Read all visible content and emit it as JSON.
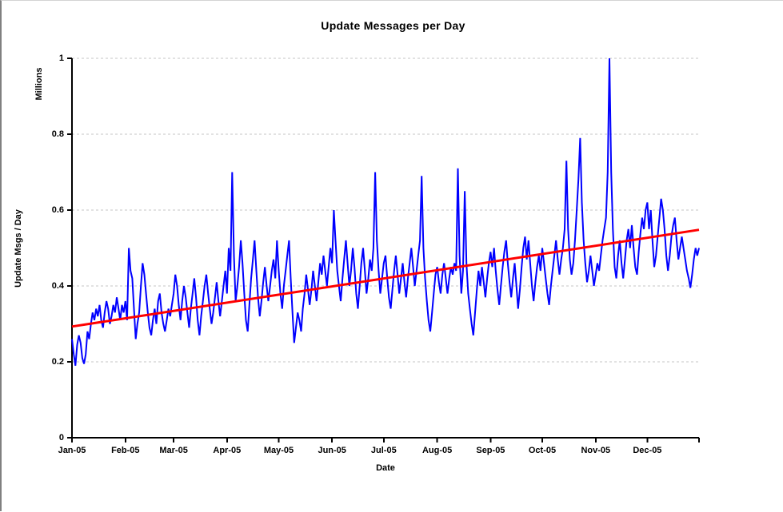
{
  "chart_data": {
    "type": "line",
    "title": "Update Messages per Day",
    "xlabel": "Date",
    "ylabel": "Update Msgs / Day",
    "y_axis_units": "Millions",
    "x_tick_labels": [
      "Jan-05",
      "Feb-05",
      "Mar-05",
      "Apr-05",
      "May-05",
      "Jun-05",
      "Jul-05",
      "Aug-05",
      "Sep-05",
      "Oct-05",
      "Nov-05",
      "Dec-05"
    ],
    "y_ticks": [
      0,
      0.2,
      0.4,
      0.6,
      0.8,
      1
    ],
    "y_tick_labels": [
      "0",
      "0.2",
      "0.4",
      "0.6",
      "0.8",
      "1"
    ],
    "ylim": [
      0,
      1
    ],
    "x_domain_days": 365,
    "month_start_days": [
      0,
      31,
      59,
      90,
      120,
      151,
      181,
      212,
      243,
      273,
      304,
      334
    ],
    "grid": {
      "horizontal": true,
      "style": "dashed",
      "color": "#c6c6c6"
    },
    "legend": "none",
    "colors": {
      "daily": "#0000ff",
      "trend": "#ff0000",
      "axis": "#000000",
      "background": "#ffffff"
    },
    "series": [
      {
        "name": "Update Msgs / Day (daily)",
        "color": "#0000ff",
        "width": 2,
        "values": [
          0.26,
          0.22,
          0.19,
          0.245,
          0.27,
          0.25,
          0.21,
          0.195,
          0.22,
          0.28,
          0.26,
          0.3,
          0.33,
          0.31,
          0.34,
          0.32,
          0.35,
          0.31,
          0.29,
          0.33,
          0.36,
          0.34,
          0.3,
          0.32,
          0.35,
          0.33,
          0.37,
          0.34,
          0.31,
          0.35,
          0.33,
          0.36,
          0.31,
          0.5,
          0.44,
          0.42,
          0.34,
          0.26,
          0.3,
          0.33,
          0.4,
          0.46,
          0.43,
          0.38,
          0.33,
          0.29,
          0.27,
          0.31,
          0.34,
          0.3,
          0.36,
          0.38,
          0.33,
          0.3,
          0.28,
          0.31,
          0.34,
          0.32,
          0.35,
          0.38,
          0.43,
          0.4,
          0.35,
          0.31,
          0.36,
          0.4,
          0.37,
          0.33,
          0.29,
          0.34,
          0.38,
          0.42,
          0.37,
          0.31,
          0.27,
          0.32,
          0.36,
          0.4,
          0.43,
          0.38,
          0.34,
          0.3,
          0.33,
          0.37,
          0.41,
          0.36,
          0.32,
          0.36,
          0.4,
          0.44,
          0.38,
          0.5,
          0.44,
          0.7,
          0.48,
          0.36,
          0.4,
          0.45,
          0.52,
          0.46,
          0.38,
          0.31,
          0.28,
          0.35,
          0.42,
          0.47,
          0.52,
          0.44,
          0.37,
          0.32,
          0.36,
          0.41,
          0.45,
          0.4,
          0.36,
          0.4,
          0.44,
          0.47,
          0.42,
          0.52,
          0.44,
          0.38,
          0.34,
          0.4,
          0.44,
          0.48,
          0.52,
          0.42,
          0.33,
          0.25,
          0.29,
          0.33,
          0.31,
          0.28,
          0.34,
          0.38,
          0.43,
          0.39,
          0.35,
          0.39,
          0.44,
          0.4,
          0.36,
          0.41,
          0.46,
          0.43,
          0.48,
          0.44,
          0.4,
          0.45,
          0.5,
          0.46,
          0.6,
          0.52,
          0.44,
          0.4,
          0.36,
          0.42,
          0.47,
          0.52,
          0.46,
          0.4,
          0.44,
          0.5,
          0.45,
          0.38,
          0.34,
          0.4,
          0.46,
          0.5,
          0.44,
          0.38,
          0.42,
          0.47,
          0.44,
          0.5,
          0.7,
          0.52,
          0.44,
          0.38,
          0.42,
          0.46,
          0.48,
          0.42,
          0.37,
          0.34,
          0.39,
          0.44,
          0.48,
          0.43,
          0.38,
          0.42,
          0.46,
          0.41,
          0.37,
          0.42,
          0.46,
          0.5,
          0.45,
          0.4,
          0.44,
          0.48,
          0.52,
          0.69,
          0.5,
          0.42,
          0.36,
          0.31,
          0.28,
          0.33,
          0.38,
          0.43,
          0.45,
          0.41,
          0.38,
          0.43,
          0.46,
          0.42,
          0.38,
          0.42,
          0.45,
          0.43,
          0.46,
          0.44,
          0.71,
          0.48,
          0.38,
          0.44,
          0.65,
          0.46,
          0.38,
          0.34,
          0.3,
          0.27,
          0.33,
          0.39,
          0.44,
          0.4,
          0.45,
          0.41,
          0.37,
          0.42,
          0.46,
          0.49,
          0.45,
          0.5,
          0.44,
          0.39,
          0.35,
          0.4,
          0.45,
          0.49,
          0.52,
          0.46,
          0.41,
          0.37,
          0.42,
          0.46,
          0.4,
          0.34,
          0.39,
          0.45,
          0.5,
          0.53,
          0.47,
          0.52,
          0.46,
          0.4,
          0.36,
          0.41,
          0.45,
          0.48,
          0.44,
          0.5,
          0.46,
          0.42,
          0.38,
          0.35,
          0.4,
          0.44,
          0.48,
          0.52,
          0.47,
          0.43,
          0.47,
          0.5,
          0.55,
          0.73,
          0.55,
          0.47,
          0.43,
          0.46,
          0.52,
          0.6,
          0.68,
          0.79,
          0.62,
          0.52,
          0.46,
          0.41,
          0.44,
          0.48,
          0.44,
          0.4,
          0.43,
          0.46,
          0.44,
          0.48,
          0.52,
          0.55,
          0.58,
          0.7,
          1.0,
          0.7,
          0.55,
          0.45,
          0.42,
          0.48,
          0.52,
          0.46,
          0.42,
          0.47,
          0.52,
          0.55,
          0.5,
          0.56,
          0.5,
          0.45,
          0.43,
          0.49,
          0.54,
          0.58,
          0.55,
          0.6,
          0.62,
          0.55,
          0.6,
          0.52,
          0.45,
          0.48,
          0.53,
          0.58,
          0.63,
          0.6,
          0.55,
          0.48,
          0.44,
          0.48,
          0.53,
          0.56,
          0.58,
          0.52,
          0.47,
          0.5,
          0.53,
          0.5,
          0.47,
          0.44,
          0.42,
          0.395,
          0.43,
          0.47,
          0.5,
          0.48,
          0.5
        ]
      },
      {
        "name": "Linear trend",
        "color": "#ff0000",
        "width": 3,
        "points": [
          [
            0,
            0.293
          ],
          [
            364,
            0.548
          ]
        ]
      }
    ]
  }
}
